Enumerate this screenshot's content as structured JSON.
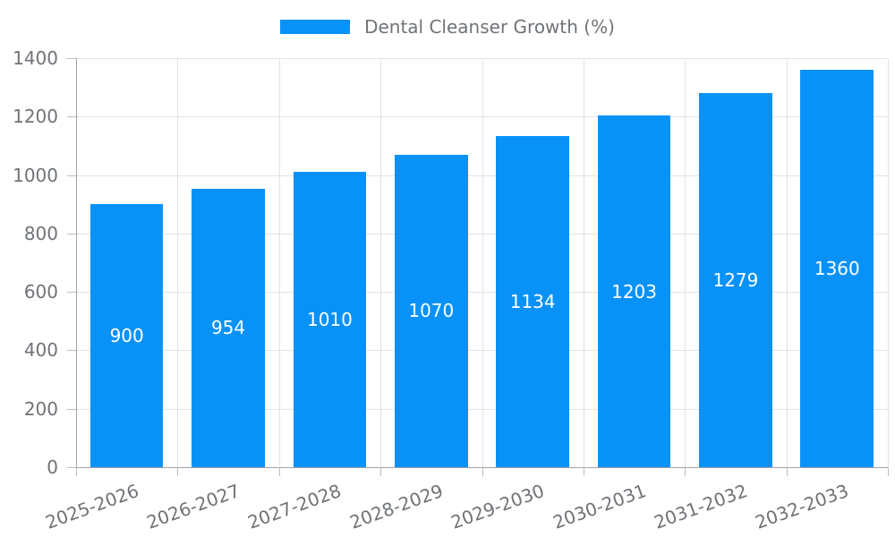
{
  "legend": {
    "label": "Dental Cleanser Growth (%)"
  },
  "chart_data": {
    "type": "bar",
    "title": "",
    "series_name": "Dental Cleanser Growth (%)",
    "categories": [
      "2025-2026",
      "2026-2027",
      "2027-2028",
      "2028-2029",
      "2029-2030",
      "2030-2031",
      "2031-2032",
      "2032-2033"
    ],
    "values": [
      900,
      954,
      1010,
      1070,
      1134,
      1203,
      1279,
      1360
    ],
    "value_labels": [
      "900",
      "954",
      "1010",
      "1070",
      "1134",
      "1203",
      "1279",
      "1360"
    ],
    "xlabel": "",
    "ylabel": "",
    "ylim": [
      0,
      1400
    ],
    "yticks": [
      0,
      200,
      400,
      600,
      800,
      1000,
      1200,
      1400
    ],
    "grid": true,
    "legend_position": "top-center",
    "x_label_rotation_deg": -20,
    "colors": {
      "bar": "#0892f8",
      "value_label": "#ffffff",
      "axis_line": "#a3a3a3",
      "tick": "#bdbdbd",
      "gridline": "#e3e3e3",
      "tick_label": "#6f7377"
    }
  }
}
